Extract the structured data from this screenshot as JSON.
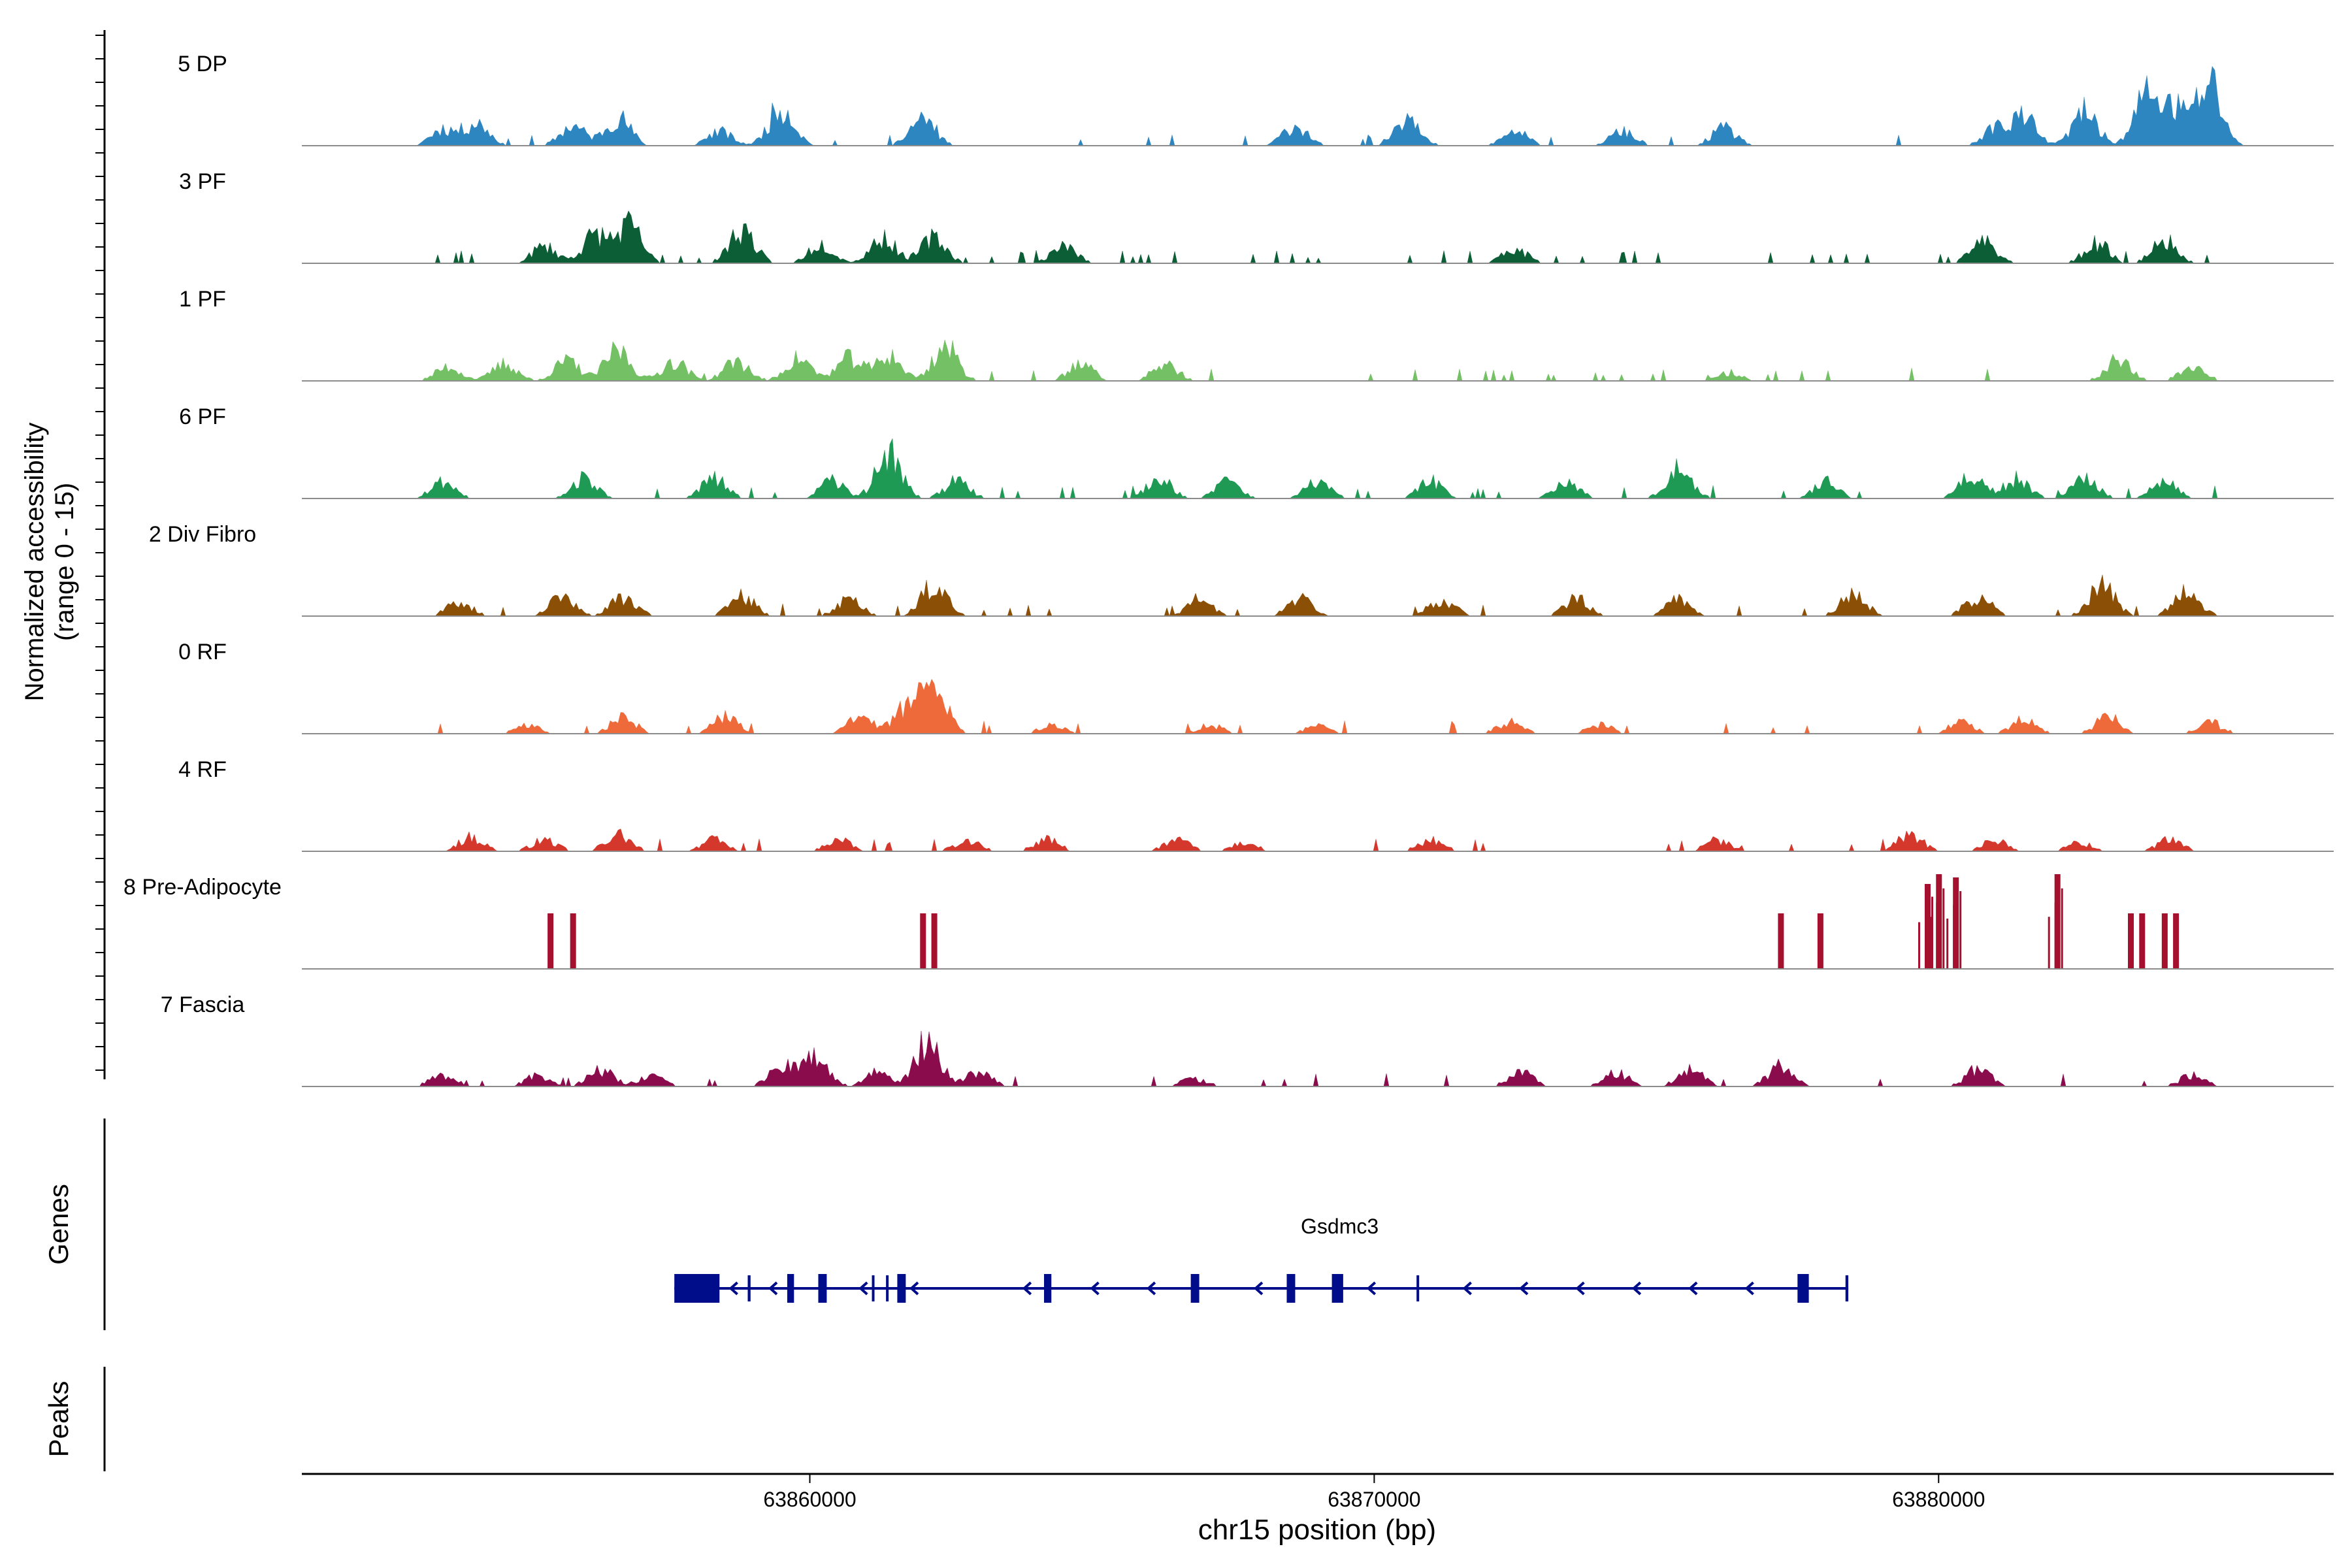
{
  "chart_data": {
    "type": "area",
    "title": "",
    "region": "chr15:63,851,000-63,887,000",
    "ylabel": "Normalized accessibility\n(range 0 - 15)",
    "xlabel": "chr15 position (bp)",
    "xlim": [
      63851000,
      63887000
    ],
    "ylim": [
      0,
      15
    ],
    "xticks": [
      {
        "value": 63860000,
        "label": "63860000"
      },
      {
        "value": 63870000,
        "label": "63870000"
      },
      {
        "value": 63880000,
        "label": "63880000"
      }
    ],
    "tracks": [
      {
        "name": "5 DP",
        "color": "#2e86c1",
        "seed": 11,
        "density": 0.45,
        "peaks": [
          [
            63853500,
            3
          ],
          [
            63854100,
            4
          ],
          [
            63855800,
            3.5
          ],
          [
            63856600,
            5
          ],
          [
            63858400,
            2.5
          ],
          [
            63859500,
            7
          ],
          [
            63862000,
            5
          ],
          [
            63868600,
            3.5
          ],
          [
            63870600,
            5.5
          ],
          [
            63872500,
            2.5
          ],
          [
            63874400,
            2.5
          ],
          [
            63876200,
            3
          ],
          [
            63881000,
            3
          ],
          [
            63881500,
            5
          ],
          [
            63882600,
            6
          ],
          [
            63883700,
            9
          ],
          [
            63884200,
            6
          ],
          [
            63884800,
            11
          ]
        ]
      },
      {
        "name": "3 PF",
        "color": "#0b5e35",
        "seed": 23,
        "density": 0.8,
        "peaks": [
          [
            63855300,
            3
          ],
          [
            63856200,
            5
          ],
          [
            63856800,
            6.5
          ],
          [
            63858800,
            6
          ],
          [
            63860200,
            3.5
          ],
          [
            63861300,
            4.5
          ],
          [
            63862200,
            4.5
          ],
          [
            63864500,
            3
          ],
          [
            63872500,
            2.5
          ],
          [
            63880800,
            4
          ],
          [
            63882800,
            3.5
          ],
          [
            63884000,
            4
          ]
        ]
      },
      {
        "name": "1 PF",
        "color": "#73c164",
        "seed": 37,
        "density": 0.95,
        "peaks": [
          [
            63853600,
            2.5
          ],
          [
            63854600,
            3
          ],
          [
            63855700,
            3.5
          ],
          [
            63856600,
            5.5
          ],
          [
            63857600,
            3.5
          ],
          [
            63858700,
            3.5
          ],
          [
            63859800,
            4
          ],
          [
            63860700,
            4
          ],
          [
            63861400,
            4.5
          ],
          [
            63862400,
            6
          ],
          [
            63864800,
            3
          ],
          [
            63866300,
            3
          ],
          [
            63876300,
            1.5
          ],
          [
            63883200,
            4
          ],
          [
            63884500,
            2.5
          ]
        ]
      },
      {
        "name": "6 PF",
        "color": "#1e9a54",
        "seed": 53,
        "density": 0.7,
        "peaks": [
          [
            63853500,
            3
          ],
          [
            63856000,
            3.5
          ],
          [
            63858300,
            3.5
          ],
          [
            63860400,
            3
          ],
          [
            63861400,
            8
          ],
          [
            63862600,
            3
          ],
          [
            63866200,
            3.5
          ],
          [
            63867400,
            3
          ],
          [
            63869000,
            3
          ],
          [
            63871000,
            3
          ],
          [
            63873400,
            3
          ],
          [
            63875400,
            6
          ],
          [
            63878000,
            3
          ],
          [
            63880600,
            4
          ],
          [
            63881400,
            3.5
          ],
          [
            63882600,
            3.5
          ],
          [
            63884000,
            3
          ]
        ]
      },
      {
        "name": "2 Div Fibro",
        "color": "#8c4f06",
        "seed": 71,
        "density": 0.7,
        "peaks": [
          [
            63853800,
            2.5
          ],
          [
            63855600,
            3.5
          ],
          [
            63856700,
            3.5
          ],
          [
            63858800,
            3.5
          ],
          [
            63860700,
            3
          ],
          [
            63862200,
            5.5
          ],
          [
            63866900,
            3
          ],
          [
            63868700,
            3
          ],
          [
            63871200,
            3
          ],
          [
            63873600,
            3
          ],
          [
            63875400,
            3
          ],
          [
            63878500,
            4
          ],
          [
            63880700,
            3.5
          ],
          [
            63882900,
            5.5
          ],
          [
            63884400,
            5
          ]
        ]
      },
      {
        "name": "0 RF",
        "color": "#ee6a3a",
        "seed": 89,
        "density": 0.65,
        "peaks": [
          [
            63855000,
            1.5
          ],
          [
            63856700,
            3
          ],
          [
            63858500,
            3
          ],
          [
            63860900,
            3
          ],
          [
            63861700,
            4.5
          ],
          [
            63862200,
            8.5
          ],
          [
            63864300,
            1.5
          ],
          [
            63867100,
            1.5
          ],
          [
            63869000,
            1.5
          ],
          [
            63872400,
            2
          ],
          [
            63874000,
            1.5
          ],
          [
            63880400,
            2
          ],
          [
            63881500,
            2.5
          ],
          [
            63883000,
            3
          ],
          [
            63884800,
            2
          ]
        ]
      },
      {
        "name": "4 RF",
        "color": "#d4382c",
        "seed": 97,
        "density": 0.5,
        "peaks": [
          [
            63854000,
            2.5
          ],
          [
            63855300,
            2
          ],
          [
            63856600,
            3
          ],
          [
            63858300,
            2
          ],
          [
            63860500,
            2
          ],
          [
            63862800,
            2
          ],
          [
            63864200,
            2
          ],
          [
            63866500,
            2
          ],
          [
            63867700,
            1.5
          ],
          [
            63871000,
            2
          ],
          [
            63876100,
            2
          ],
          [
            63879500,
            3
          ],
          [
            63881000,
            2
          ],
          [
            63882500,
            1.5
          ],
          [
            63884100,
            2
          ]
        ]
      },
      {
        "name": "8 Pre-Adipocyte",
        "color": "#a4102d",
        "seed": 101,
        "density": 0.0,
        "bars": [
          [
            63855400,
            8.5
          ],
          [
            63855800,
            8.5
          ],
          [
            63862000,
            8.5
          ],
          [
            63862200,
            8.5
          ],
          [
            63877200,
            8.5
          ],
          [
            63877900,
            8.5
          ],
          [
            63879800,
            13
          ],
          [
            63880000,
            14.5
          ],
          [
            63880300,
            14
          ],
          [
            63882100,
            14.5
          ],
          [
            63883400,
            8.5
          ],
          [
            63883600,
            8.5
          ],
          [
            63884000,
            8.5
          ],
          [
            63884200,
            8.5
          ]
        ]
      },
      {
        "name": "7 Fascia",
        "color": "#8a0c4d",
        "seed": 113,
        "density": 0.6,
        "peaks": [
          [
            63853500,
            2
          ],
          [
            63855200,
            2
          ],
          [
            63856300,
            3
          ],
          [
            63857200,
            2
          ],
          [
            63859500,
            3.5
          ],
          [
            63860100,
            5
          ],
          [
            63861200,
            2.5
          ],
          [
            63862100,
            8.5
          ],
          [
            63863000,
            2.5
          ],
          [
            63866800,
            1.5
          ],
          [
            63872600,
            2.5
          ],
          [
            63874300,
            2.5
          ],
          [
            63875600,
            3
          ],
          [
            63877200,
            3.5
          ],
          [
            63880700,
            3
          ],
          [
            63884500,
            2
          ]
        ]
      }
    ],
    "genes": {
      "label": "Genes",
      "name": "Gsdmc3",
      "color": "#000d8a",
      "strand": "-",
      "start": 63857600,
      "end": 63878400,
      "exons": [
        [
          63857600,
          63858400
        ],
        [
          63858900,
          63858950
        ],
        [
          63859600,
          63859720
        ],
        [
          63860150,
          63860300
        ],
        [
          63861100,
          63861130
        ],
        [
          63861350,
          63861380
        ],
        [
          63861550,
          63861700
        ],
        [
          63864150,
          63864280
        ],
        [
          63866750,
          63866900
        ],
        [
          63868450,
          63868600
        ],
        [
          63869250,
          63869450
        ],
        [
          63870750,
          63870780
        ],
        [
          63877500,
          63877700
        ],
        [
          63878350,
          63878400
        ]
      ],
      "arrows": [
        63858600,
        63859300,
        63860900,
        63861800,
        63863800,
        63865000,
        63866000,
        63867900,
        63869900,
        63871600,
        63872600,
        63873600,
        63874600,
        63875600,
        63876600
      ]
    },
    "peaks_track": {
      "label": "Peaks"
    }
  }
}
